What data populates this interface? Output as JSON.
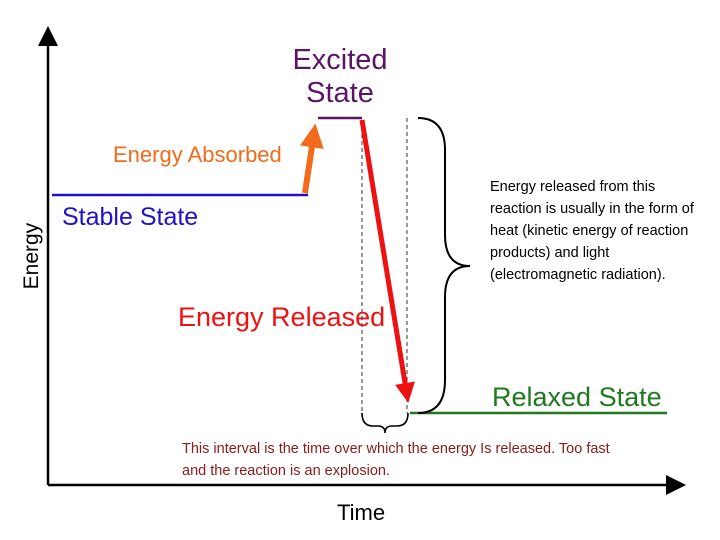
{
  "labels": {
    "excited_line1": "Excited",
    "excited_line2": "State",
    "energy_absorbed": "Energy Absorbed",
    "stable_state": "Stable State",
    "energy_released": "Energy Released",
    "relaxed_state": "Relaxed State",
    "x_axis": "Time",
    "y_axis": "Energy"
  },
  "notes": {
    "release_form": "Energy released from this reaction is usually in the form of heat (kinetic energy of reaction products) and light (electromagnetic radiation).",
    "interval": "This interval is the time over which the energy Is released. Too fast and the reaction is an explosion."
  },
  "colors": {
    "stable": "#1f10cc",
    "absorbed": "#f26a1b",
    "excited": "#5b1466",
    "released": "#ee1111",
    "relaxed": "#1f7a1f",
    "interval_note": "#8b1a1a"
  }
}
